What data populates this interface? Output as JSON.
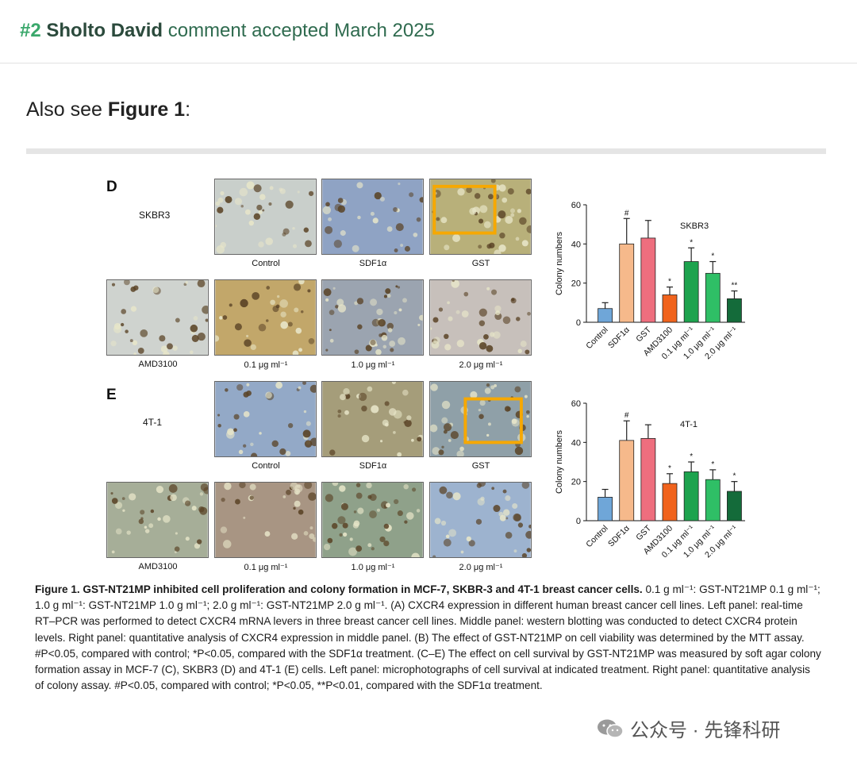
{
  "header": {
    "number": "#2",
    "author": "Sholto David",
    "status": "comment accepted March 2025"
  },
  "intro": {
    "prefix": "Also see ",
    "figure_ref": "Figure 1",
    "suffix": ":"
  },
  "panels": [
    {
      "letter": "D",
      "cell_line": "SKBR3",
      "micro_labels": [
        "Control",
        "SDF1α",
        "GST",
        "AMD3100",
        "0.1 μg ml⁻¹",
        "1.0 μg ml⁻¹",
        "2.0 μg ml⁻¹"
      ],
      "highlight_index": 2,
      "tints": [
        "#c9cfcb",
        "#8fa3c4",
        "#b8b07a",
        "#cfd3cf",
        "#c2a76a",
        "#9ba4b0",
        "#c7c0bb"
      ]
    },
    {
      "letter": "E",
      "cell_line": "4T-1",
      "micro_labels": [
        "Control",
        "SDF1α",
        "GST",
        "AMD3100",
        "0.1 μg ml⁻¹",
        "1.0 μg ml⁻¹",
        "2.0 μg ml⁻¹"
      ],
      "highlight_index": 2,
      "tints": [
        "#93a9c7",
        "#a59d7a",
        "#8fa0a8",
        "#a6ae98",
        "#a89583",
        "#8fa18a",
        "#9db3cf"
      ]
    }
  ],
  "chart_data": [
    {
      "type": "bar",
      "title": "SKBR3",
      "ylabel": "Colony numbers",
      "ylim": [
        0,
        60
      ],
      "yticks": [
        0,
        20,
        40,
        60
      ],
      "categories": [
        "Control",
        "SDF1α",
        "GST",
        "AMD3100",
        "0.1 μg ml⁻¹",
        "1.0 μg ml⁻¹",
        "2.0 μg ml⁻¹"
      ],
      "values": [
        7,
        40,
        43,
        14,
        31,
        25,
        12
      ],
      "errors": [
        3,
        13,
        9,
        4,
        7,
        6,
        4
      ],
      "annotations": [
        "",
        "#",
        "",
        "*",
        "*",
        "*",
        "**"
      ],
      "colors": [
        "#6fa6d8",
        "#f6b98b",
        "#ee6e7e",
        "#f0631d",
        "#1da34e",
        "#2fbf66",
        "#146b3a"
      ]
    },
    {
      "type": "bar",
      "title": "4T-1",
      "ylabel": "Colony numbers",
      "ylim": [
        0,
        60
      ],
      "yticks": [
        0,
        20,
        40,
        60
      ],
      "categories": [
        "Control",
        "SDF1α",
        "GST",
        "AMD3100",
        "0.1 μg ml⁻¹",
        "1.0 μg ml⁻¹",
        "2.0 μg ml⁻¹"
      ],
      "values": [
        12,
        41,
        42,
        19,
        25,
        21,
        15
      ],
      "errors": [
        4,
        10,
        7,
        5,
        5,
        5,
        5
      ],
      "annotations": [
        "",
        "#",
        "",
        "*",
        "*",
        "*",
        "*"
      ],
      "colors": [
        "#6fa6d8",
        "#f6b98b",
        "#ee6e7e",
        "#f0631d",
        "#1da34e",
        "#2fbf66",
        "#146b3a"
      ]
    }
  ],
  "caption": {
    "title": "Figure 1. GST-NT21MP inhibited cell proliferation and colony formation in MCF-7, SKBR-3 and 4T-1 breast cancer cells.",
    "body": " 0.1 g ml⁻¹: GST-NT21MP 0.1 g ml⁻¹; 1.0 g ml⁻¹: GST-NT21MP 1.0 g ml⁻¹; 2.0 g ml⁻¹: GST-NT21MP 2.0 g ml⁻¹. (A) CXCR4 expression in different human breast cancer cell lines. Left panel: real-time RT–PCR was performed to detect CXCR4 mRNA levers in three breast cancer cell lines. Middle panel: western blotting was conducted to detect CXCR4 protein levels. Right panel: quantitative analysis of CXCR4 expression in middle panel. (B) The effect of GST-NT21MP on cell viability was determined by the MTT assay. #P<0.05, compared with control; *P<0.05, compared with the SDF1α treatment. (C–E) The effect on cell survival by GST-NT21MP was measured by soft agar colony formation assay in MCF-7 (C), SKBR3 (D) and 4T-1 (E) cells. Left panel: microphotographs of cell survival at indicated treatment. Right panel: quantitative analysis of colony assay. #P<0.05, compared with control; *P<0.05, **P<0.01, compared with the SDF1α treatment."
  },
  "watermark": {
    "text": "公众号 · 先锋科研",
    "icon": "wechat-icon"
  }
}
